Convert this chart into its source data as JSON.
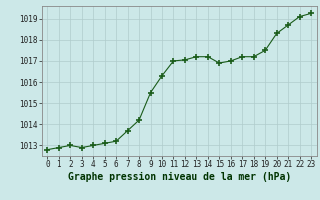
{
  "x": [
    0,
    1,
    2,
    3,
    4,
    5,
    6,
    7,
    8,
    9,
    10,
    11,
    12,
    13,
    14,
    15,
    16,
    17,
    18,
    19,
    20,
    21,
    22,
    23
  ],
  "y": [
    1012.8,
    1012.9,
    1013.0,
    1012.9,
    1013.0,
    1013.1,
    1013.2,
    1013.7,
    1014.2,
    1015.5,
    1016.3,
    1017.0,
    1017.05,
    1017.2,
    1017.2,
    1016.9,
    1017.0,
    1017.2,
    1017.2,
    1017.5,
    1018.3,
    1018.7,
    1019.1,
    1019.25
  ],
  "line_color": "#1a5c1a",
  "marker": "+",
  "marker_size": 4,
  "marker_linewidth": 1.2,
  "bg_color": "#cce8e8",
  "grid_color": "#b0cccc",
  "xlabel_text": "Graphe pression niveau de la mer (hPa)",
  "ylim": [
    1012.5,
    1019.6
  ],
  "xlim": [
    -0.5,
    23.5
  ],
  "yticks": [
    1013,
    1014,
    1015,
    1016,
    1017,
    1018,
    1019
  ],
  "xticks": [
    0,
    1,
    2,
    3,
    4,
    5,
    6,
    7,
    8,
    9,
    10,
    11,
    12,
    13,
    14,
    15,
    16,
    17,
    18,
    19,
    20,
    21,
    22,
    23
  ],
  "tick_fontsize": 5.5,
  "xlabel_fontsize": 7.0,
  "line_width": 0.8,
  "spine_color": "#888888"
}
